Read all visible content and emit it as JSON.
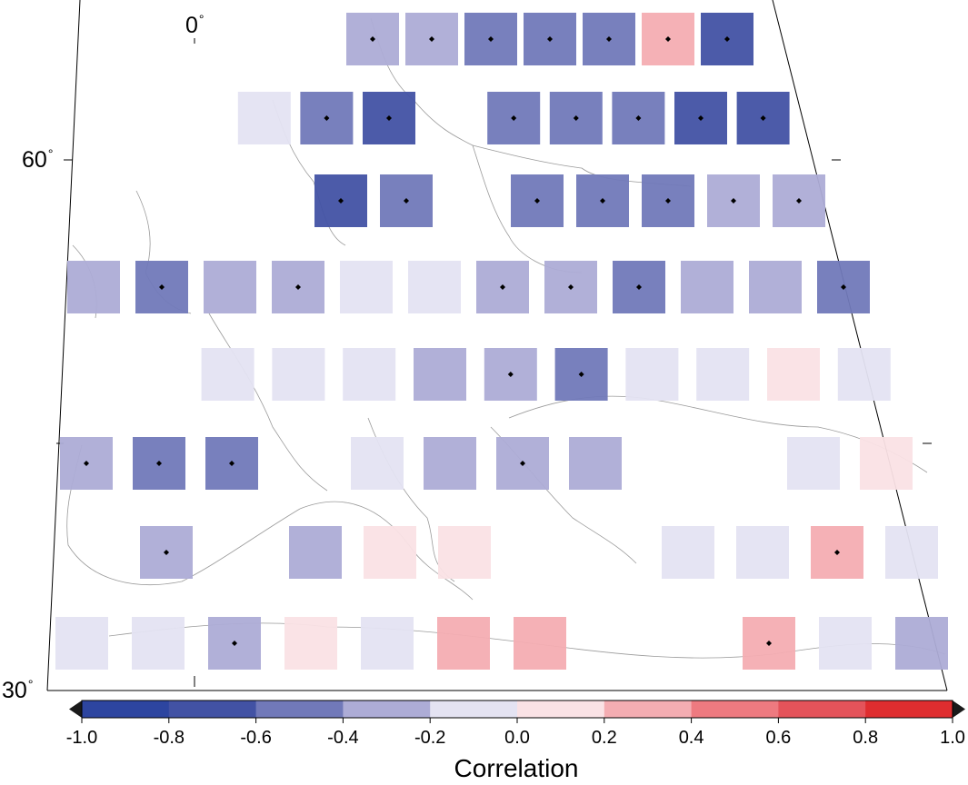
{
  "map": {
    "graticule_labels": {
      "lon_0": "0",
      "lat_60": "60",
      "lat_30": "30"
    },
    "cells": [
      {
        "row": 1,
        "col": 6,
        "value": -0.3,
        "marker": true
      },
      {
        "row": 1,
        "col": 7,
        "value": -0.3,
        "marker": true
      },
      {
        "row": 1,
        "col": 8,
        "value": -0.5,
        "marker": true
      },
      {
        "row": 1,
        "col": 9,
        "value": -0.5,
        "marker": true
      },
      {
        "row": 1,
        "col": 10,
        "value": -0.5,
        "marker": true
      },
      {
        "row": 1,
        "col": 11,
        "value": 0.3,
        "marker": true
      },
      {
        "row": 1,
        "col": 12,
        "value": -0.7,
        "marker": true
      },
      {
        "row": 2,
        "col": 4,
        "value": -0.1,
        "marker": false
      },
      {
        "row": 2,
        "col": 5,
        "value": -0.5,
        "marker": true
      },
      {
        "row": 2,
        "col": 6,
        "value": -0.7,
        "marker": true
      },
      {
        "row": 2,
        "col": 8,
        "value": -0.5,
        "marker": true
      },
      {
        "row": 2,
        "col": 9,
        "value": -0.5,
        "marker": true
      },
      {
        "row": 2,
        "col": 10,
        "value": -0.5,
        "marker": true
      },
      {
        "row": 2,
        "col": 11,
        "value": -0.7,
        "marker": true
      },
      {
        "row": 2,
        "col": 12,
        "value": -0.7,
        "marker": true
      },
      {
        "row": 3,
        "col": 5,
        "value": -0.7,
        "marker": true
      },
      {
        "row": 3,
        "col": 6,
        "value": -0.5,
        "marker": true
      },
      {
        "row": 3,
        "col": 8,
        "value": -0.5,
        "marker": true
      },
      {
        "row": 3,
        "col": 9,
        "value": -0.5,
        "marker": true
      },
      {
        "row": 3,
        "col": 10,
        "value": -0.5,
        "marker": true
      },
      {
        "row": 3,
        "col": 11,
        "value": -0.3,
        "marker": true
      },
      {
        "row": 3,
        "col": 12,
        "value": -0.3,
        "marker": true
      },
      {
        "row": 4,
        "col": 1,
        "value": -0.3,
        "marker": false
      },
      {
        "row": 4,
        "col": 2,
        "value": -0.5,
        "marker": true
      },
      {
        "row": 4,
        "col": 3,
        "value": -0.3,
        "marker": false
      },
      {
        "row": 4,
        "col": 4,
        "value": -0.3,
        "marker": true
      },
      {
        "row": 4,
        "col": 5,
        "value": -0.1,
        "marker": false
      },
      {
        "row": 4,
        "col": 6,
        "value": -0.1,
        "marker": false
      },
      {
        "row": 4,
        "col": 7,
        "value": -0.3,
        "marker": true
      },
      {
        "row": 4,
        "col": 8,
        "value": -0.3,
        "marker": true
      },
      {
        "row": 4,
        "col": 9,
        "value": -0.5,
        "marker": true
      },
      {
        "row": 4,
        "col": 10,
        "value": -0.3,
        "marker": false
      },
      {
        "row": 4,
        "col": 11,
        "value": -0.3,
        "marker": false
      },
      {
        "row": 4,
        "col": 12,
        "value": -0.5,
        "marker": true
      },
      {
        "row": 5,
        "col": 3,
        "value": -0.1,
        "marker": false
      },
      {
        "row": 5,
        "col": 4,
        "value": -0.1,
        "marker": false
      },
      {
        "row": 5,
        "col": 5,
        "value": -0.1,
        "marker": false
      },
      {
        "row": 5,
        "col": 6,
        "value": -0.3,
        "marker": false
      },
      {
        "row": 5,
        "col": 7,
        "value": -0.3,
        "marker": true
      },
      {
        "row": 5,
        "col": 8,
        "value": -0.5,
        "marker": true
      },
      {
        "row": 5,
        "col": 9,
        "value": -0.1,
        "marker": false
      },
      {
        "row": 5,
        "col": 10,
        "value": -0.1,
        "marker": false
      },
      {
        "row": 5,
        "col": 11,
        "value": 0.1,
        "marker": false
      },
      {
        "row": 5,
        "col": 12,
        "value": -0.1,
        "marker": false
      },
      {
        "row": 6,
        "col": 1,
        "value": -0.3,
        "marker": true
      },
      {
        "row": 6,
        "col": 2,
        "value": -0.5,
        "marker": true
      },
      {
        "row": 6,
        "col": 3,
        "value": -0.5,
        "marker": true
      },
      {
        "row": 6,
        "col": 5,
        "value": -0.1,
        "marker": false
      },
      {
        "row": 6,
        "col": 6,
        "value": -0.3,
        "marker": false
      },
      {
        "row": 6,
        "col": 7,
        "value": -0.3,
        "marker": true
      },
      {
        "row": 6,
        "col": 8,
        "value": -0.3,
        "marker": false
      },
      {
        "row": 6,
        "col": 11,
        "value": -0.1,
        "marker": false
      },
      {
        "row": 6,
        "col": 12,
        "value": 0.1,
        "marker": false
      },
      {
        "row": 7,
        "col": 2,
        "value": -0.3,
        "marker": true
      },
      {
        "row": 7,
        "col": 4,
        "value": -0.3,
        "marker": false
      },
      {
        "row": 7,
        "col": 5,
        "value": 0.1,
        "marker": false
      },
      {
        "row": 7,
        "col": 6,
        "value": 0.1,
        "marker": false
      },
      {
        "row": 7,
        "col": 9,
        "value": -0.1,
        "marker": false
      },
      {
        "row": 7,
        "col": 10,
        "value": -0.1,
        "marker": false
      },
      {
        "row": 7,
        "col": 11,
        "value": 0.3,
        "marker": true
      },
      {
        "row": 7,
        "col": 12,
        "value": -0.1,
        "marker": false
      },
      {
        "row": 8,
        "col": 1,
        "value": -0.1,
        "marker": false
      },
      {
        "row": 8,
        "col": 2,
        "value": -0.1,
        "marker": false
      },
      {
        "row": 8,
        "col": 3,
        "value": -0.3,
        "marker": true
      },
      {
        "row": 8,
        "col": 4,
        "value": 0.1,
        "marker": false
      },
      {
        "row": 8,
        "col": 5,
        "value": -0.1,
        "marker": false
      },
      {
        "row": 8,
        "col": 6,
        "value": 0.3,
        "marker": false
      },
      {
        "row": 8,
        "col": 7,
        "value": 0.3,
        "marker": false
      },
      {
        "row": 8,
        "col": 10,
        "value": 0.3,
        "marker": true
      },
      {
        "row": 8,
        "col": 11,
        "value": -0.1,
        "marker": false
      },
      {
        "row": 8,
        "col": 12,
        "value": -0.3,
        "marker": false
      }
    ]
  },
  "colorbar": {
    "title": "Correlation",
    "min": -1.0,
    "max": 1.0,
    "ticks": [
      "-1.0",
      "-0.8",
      "-0.6",
      "-0.4",
      "-0.2",
      "0.0",
      "0.2",
      "0.4",
      "0.6",
      "0.8",
      "1.0"
    ],
    "bins": [
      {
        "from": -1.0,
        "to": -0.8,
        "color": "#2d45a0"
      },
      {
        "from": -0.8,
        "to": -0.6,
        "color": "#4252a4"
      },
      {
        "from": -0.6,
        "to": -0.4,
        "color": "#7179b9"
      },
      {
        "from": -0.4,
        "to": -0.2,
        "color": "#adacd6"
      },
      {
        "from": -0.2,
        "to": 0.0,
        "color": "#e4e3f2"
      },
      {
        "from": 0.0,
        "to": 0.2,
        "color": "#fae2e5"
      },
      {
        "from": 0.2,
        "to": 0.4,
        "color": "#f4adb2"
      },
      {
        "from": 0.4,
        "to": 0.6,
        "color": "#ee7a80"
      },
      {
        "from": 0.6,
        "to": 0.8,
        "color": "#e4535a"
      },
      {
        "from": 0.8,
        "to": 1.0,
        "color": "#df2d2f"
      }
    ],
    "under_color": "#1a1a1a",
    "over_color": "#1a1a1a"
  }
}
